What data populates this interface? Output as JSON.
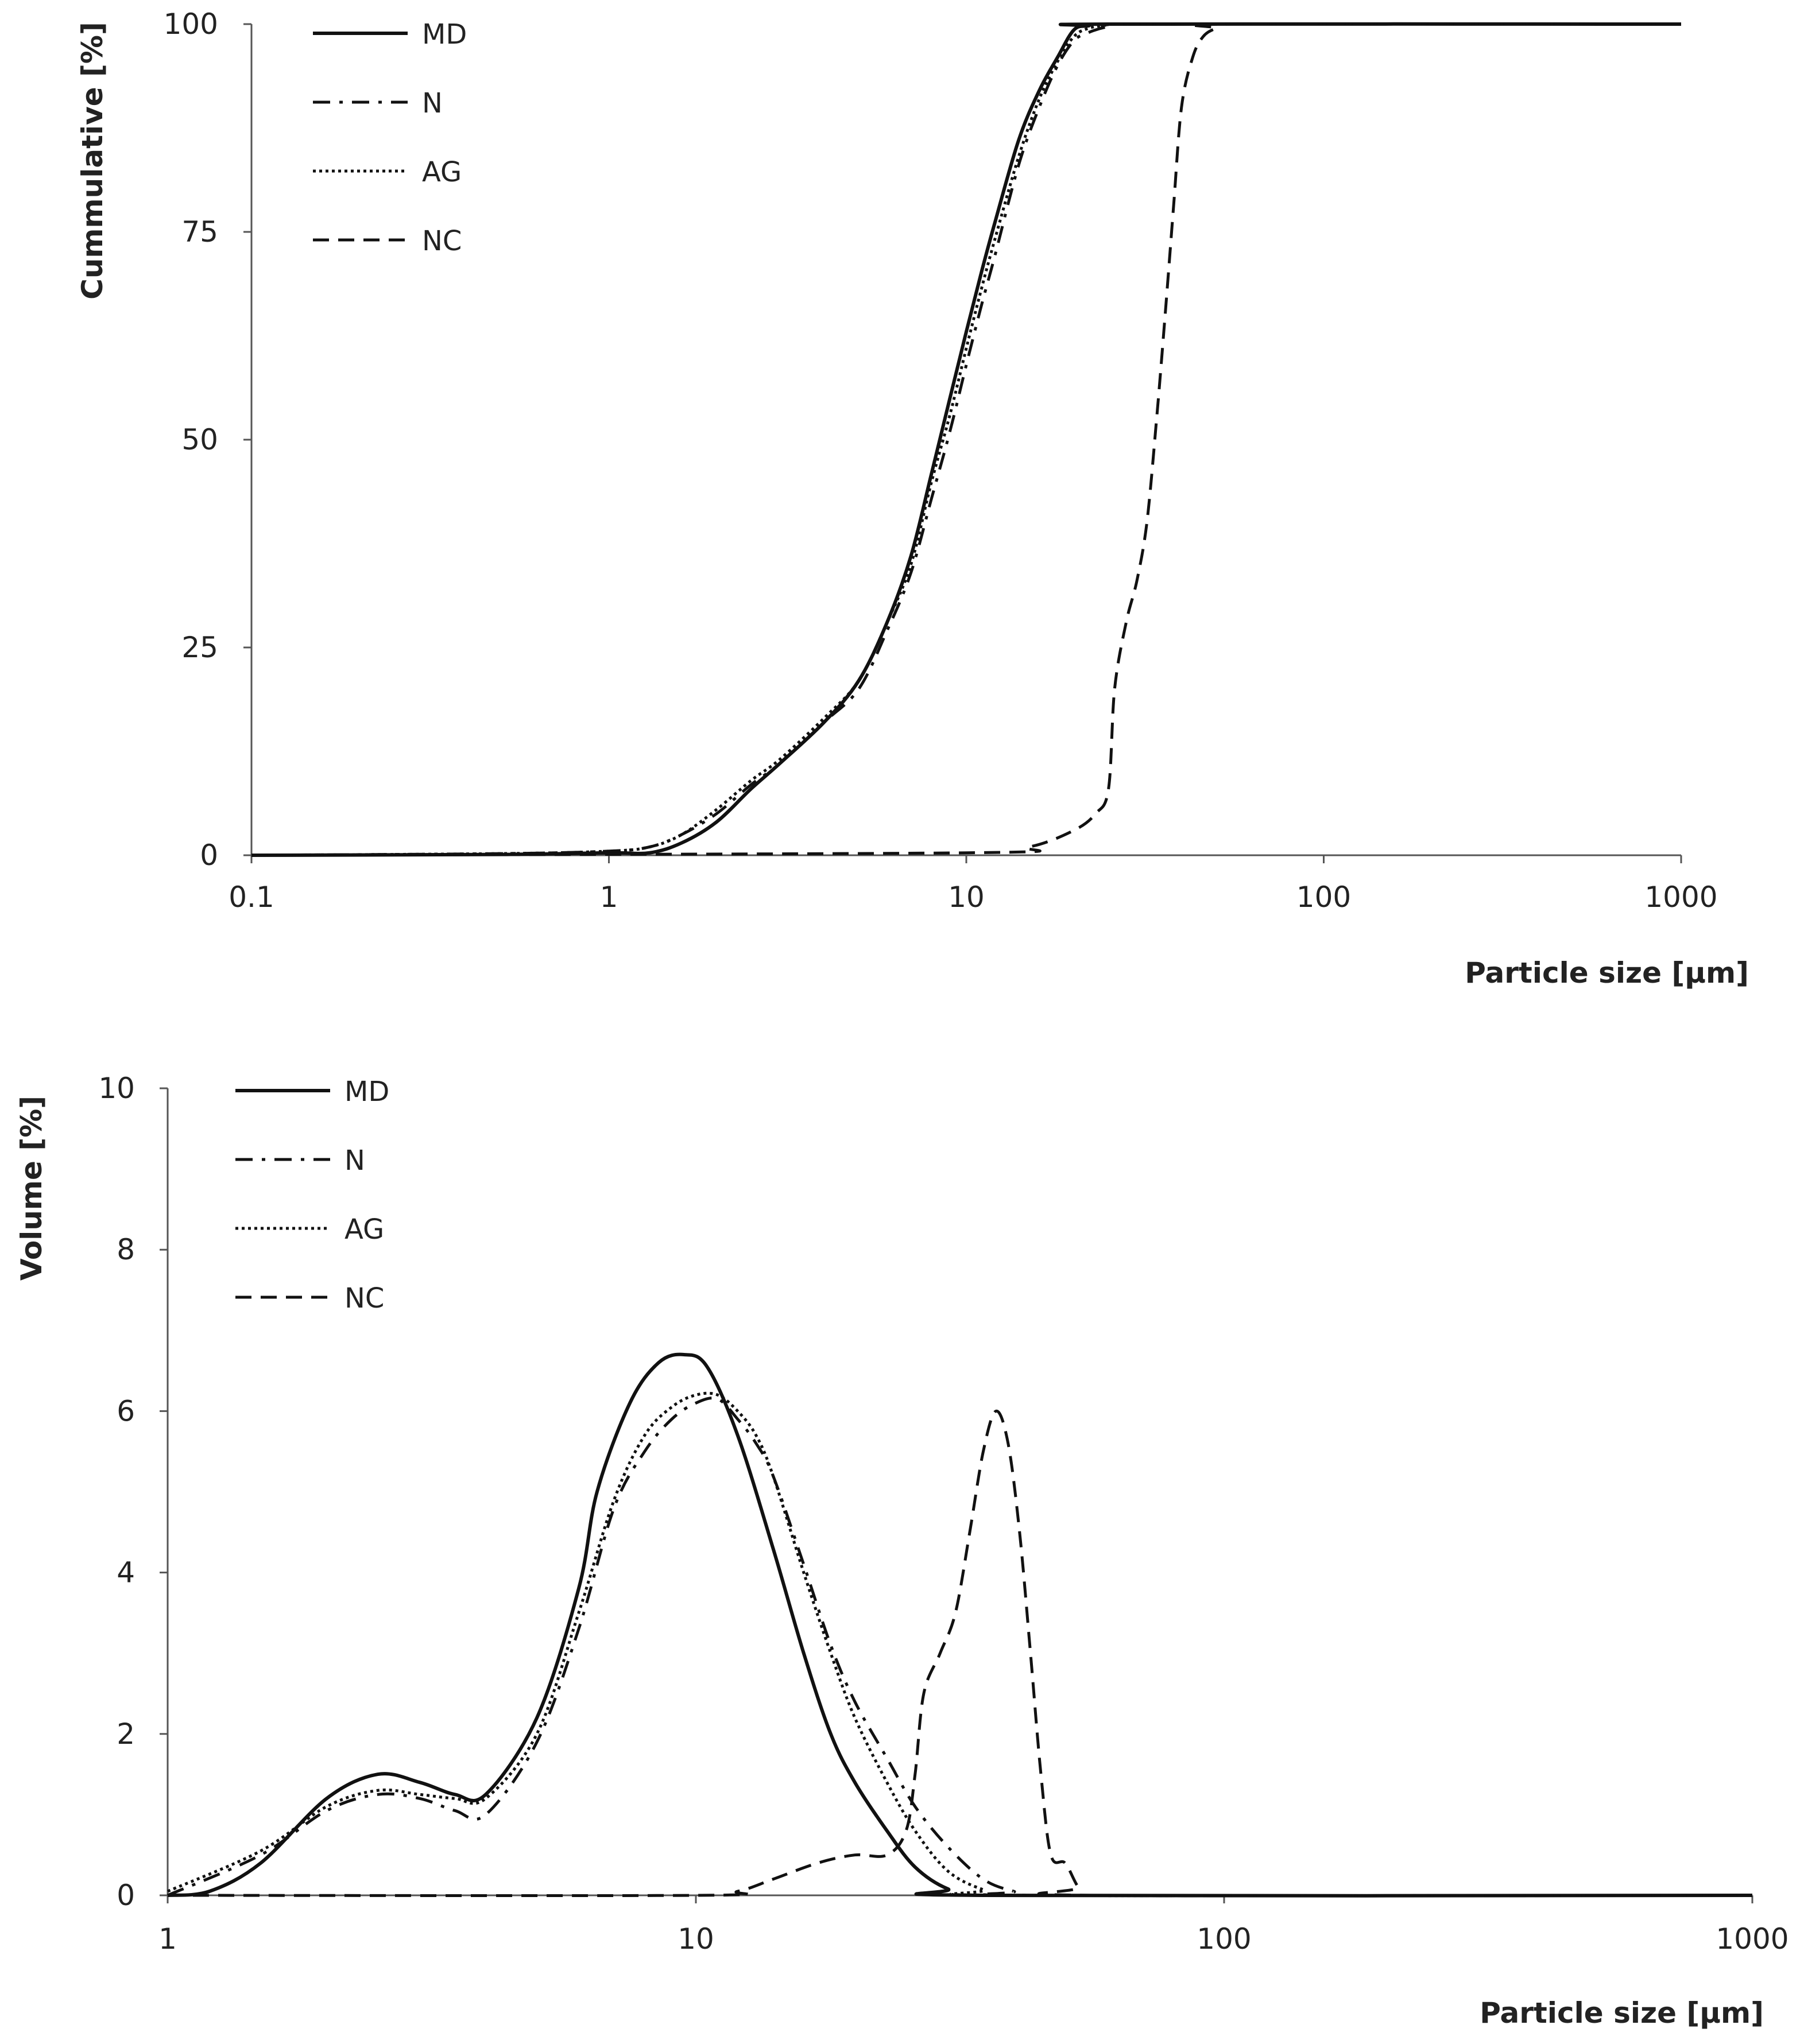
{
  "chart_data": [
    {
      "type": "line",
      "id": "cumulative",
      "xscale": "log",
      "xlim": [
        0.1,
        1000
      ],
      "ylim": [
        0,
        100
      ],
      "xticks": [
        "0.1",
        "1",
        "10",
        "100",
        "1000"
      ],
      "yticks": [
        "0",
        "25",
        "50",
        "75",
        "100"
      ],
      "xlabel": "Particle size [μm]",
      "ylabel": "Cummulative [%]",
      "legend_position": "top-left",
      "series": [
        {
          "name": "MD",
          "style": "solid",
          "points": [
            [
              0.1,
              0
            ],
            [
              0.5,
              0.1
            ],
            [
              1,
              0.3
            ],
            [
              1.3,
              0.3
            ],
            [
              1.6,
              1.5
            ],
            [
              2,
              4
            ],
            [
              2.5,
              8
            ],
            [
              3,
              11
            ],
            [
              4,
              16
            ],
            [
              5,
              21
            ],
            [
              6,
              28
            ],
            [
              7,
              36
            ],
            [
              8,
              46
            ],
            [
              9,
              55
            ],
            [
              10,
              63
            ],
            [
              11,
              70
            ],
            [
              12,
              76
            ],
            [
              14,
              86
            ],
            [
              16,
              92
            ],
            [
              18,
              96
            ],
            [
              20,
              99.3
            ],
            [
              22,
              99.8
            ],
            [
              25,
              100
            ],
            [
              1000,
              100
            ]
          ]
        },
        {
          "name": "N",
          "style": "dashdot",
          "points": [
            [
              0.1,
              0
            ],
            [
              0.5,
              0.2
            ],
            [
              1,
              0.5
            ],
            [
              1.3,
              1
            ],
            [
              1.6,
              2.5
            ],
            [
              2,
              5
            ],
            [
              2.5,
              8.5
            ],
            [
              3,
              11
            ],
            [
              4,
              16
            ],
            [
              5,
              20
            ],
            [
              6,
              27
            ],
            [
              7,
              34
            ],
            [
              8,
              43
            ],
            [
              9,
              51
            ],
            [
              10,
              59
            ],
            [
              11,
              66
            ],
            [
              12,
              72
            ],
            [
              14,
              83
            ],
            [
              16,
              90
            ],
            [
              18,
              95
            ],
            [
              20,
              98
            ],
            [
              22,
              99
            ],
            [
              25,
              99.7
            ],
            [
              30,
              100
            ],
            [
              1000,
              100
            ]
          ]
        },
        {
          "name": "AG",
          "style": "dotted",
          "points": [
            [
              0.1,
              0
            ],
            [
              0.5,
              0.2
            ],
            [
              1,
              0.5
            ],
            [
              1.3,
              1
            ],
            [
              1.6,
              2.5
            ],
            [
              2,
              5.5
            ],
            [
              2.5,
              9
            ],
            [
              3,
              11.5
            ],
            [
              4,
              16.5
            ],
            [
              5,
              21
            ],
            [
              6,
              28
            ],
            [
              7,
              35
            ],
            [
              8,
              45
            ],
            [
              9,
              53
            ],
            [
              10,
              61
            ],
            [
              11,
              68
            ],
            [
              12,
              74
            ],
            [
              14,
              84
            ],
            [
              16,
              91
            ],
            [
              18,
              95.5
            ],
            [
              20,
              98.5
            ],
            [
              22,
              99.5
            ],
            [
              25,
              99.9
            ],
            [
              30,
              100
            ],
            [
              1000,
              100
            ]
          ]
        },
        {
          "name": "NC",
          "style": "dashed",
          "points": [
            [
              0.1,
              0
            ],
            [
              10,
              0.3
            ],
            [
              15,
              1
            ],
            [
              20,
              3
            ],
            [
              23,
              5
            ],
            [
              25,
              8
            ],
            [
              26,
              20
            ],
            [
              28,
              28
            ],
            [
              30,
              33
            ],
            [
              32,
              40
            ],
            [
              34,
              52
            ],
            [
              36,
              65
            ],
            [
              38,
              78
            ],
            [
              40,
              90
            ],
            [
              43,
              96
            ],
            [
              46,
              98.5
            ],
            [
              50,
              99.5
            ],
            [
              55,
              100
            ],
            [
              1000,
              100
            ]
          ]
        }
      ]
    },
    {
      "type": "line",
      "id": "volume",
      "xscale": "log",
      "xlim": [
        1,
        1000
      ],
      "ylim": [
        0,
        10
      ],
      "xticks": [
        "1",
        "10",
        "100",
        "1000"
      ],
      "yticks": [
        "0",
        "2",
        "4",
        "6",
        "8",
        "10"
      ],
      "xlabel": "Particle size [μm]",
      "ylabel": "Volume [%]",
      "legend_position": "top-left",
      "series": [
        {
          "name": "MD",
          "style": "solid",
          "points": [
            [
              1,
              0
            ],
            [
              1.2,
              0.05
            ],
            [
              1.5,
              0.4
            ],
            [
              2,
              1.2
            ],
            [
              2.5,
              1.5
            ],
            [
              3,
              1.4
            ],
            [
              3.5,
              1.25
            ],
            [
              4,
              1.25
            ],
            [
              5,
              2.2
            ],
            [
              6,
              3.8
            ],
            [
              6.5,
              5
            ],
            [
              7.5,
              6.1
            ],
            [
              8.5,
              6.6
            ],
            [
              9.5,
              6.7
            ],
            [
              10.5,
              6.55
            ],
            [
              12,
              5.7
            ],
            [
              14,
              4.3
            ],
            [
              16,
              3
            ],
            [
              18,
              2
            ],
            [
              20,
              1.4
            ],
            [
              23,
              0.8
            ],
            [
              26,
              0.35
            ],
            [
              30,
              0.08
            ],
            [
              35,
              0
            ],
            [
              1000,
              0
            ]
          ]
        },
        {
          "name": "N",
          "style": "dashdot",
          "points": [
            [
              1,
              0
            ],
            [
              1.5,
              0.5
            ],
            [
              2,
              1.05
            ],
            [
              2.5,
              1.25
            ],
            [
              3,
              1.2
            ],
            [
              3.5,
              1.05
            ],
            [
              4,
              1.0
            ],
            [
              5,
              1.9
            ],
            [
              6,
              3.3
            ],
            [
              7,
              4.8
            ],
            [
              8,
              5.5
            ],
            [
              9,
              5.9
            ],
            [
              10,
              6.1
            ],
            [
              11,
              6.15
            ],
            [
              12,
              5.9
            ],
            [
              13,
              5.6
            ],
            [
              14,
              5.2
            ],
            [
              16,
              4.1
            ],
            [
              18,
              3.1
            ],
            [
              20,
              2.4
            ],
            [
              23,
              1.7
            ],
            [
              26,
              1.1
            ],
            [
              30,
              0.6
            ],
            [
              35,
              0.2
            ],
            [
              40,
              0.05
            ],
            [
              45,
              0
            ],
            [
              1000,
              0
            ]
          ]
        },
        {
          "name": "AG",
          "style": "dotted",
          "points": [
            [
              1,
              0.05
            ],
            [
              1.5,
              0.55
            ],
            [
              2,
              1.1
            ],
            [
              2.5,
              1.3
            ],
            [
              3,
              1.25
            ],
            [
              3.5,
              1.2
            ],
            [
              4,
              1.2
            ],
            [
              5,
              2.0
            ],
            [
              6,
              3.5
            ],
            [
              7,
              4.9
            ],
            [
              8,
              5.7
            ],
            [
              9,
              6.05
            ],
            [
              10,
              6.2
            ],
            [
              11,
              6.2
            ],
            [
              12,
              6.0
            ],
            [
              13,
              5.7
            ],
            [
              14,
              5.2
            ],
            [
              16,
              4.0
            ],
            [
              18,
              3.0
            ],
            [
              20,
              2.2
            ],
            [
              23,
              1.4
            ],
            [
              26,
              0.8
            ],
            [
              30,
              0.3
            ],
            [
              35,
              0.07
            ],
            [
              40,
              0
            ],
            [
              1000,
              0
            ]
          ]
        },
        {
          "name": "NC",
          "style": "dashed",
          "points": [
            [
              1,
              0
            ],
            [
              10,
              0
            ],
            [
              12,
              0.05
            ],
            [
              14,
              0.2
            ],
            [
              17,
              0.4
            ],
            [
              20,
              0.5
            ],
            [
              23,
              0.5
            ],
            [
              25,
              0.8
            ],
            [
              26,
              1.5
            ],
            [
              27,
              2.5
            ],
            [
              29,
              3
            ],
            [
              31,
              3.5
            ],
            [
              33,
              4.5
            ],
            [
              35,
              5.5
            ],
            [
              37,
              6.0
            ],
            [
              39,
              5.6
            ],
            [
              41,
              4.5
            ],
            [
              43,
              3.0
            ],
            [
              45,
              1.5
            ],
            [
              47,
              0.5
            ],
            [
              50,
              0.4
            ],
            [
              53,
              0.1
            ],
            [
              56,
              0
            ],
            [
              1000,
              0
            ]
          ]
        }
      ]
    }
  ]
}
